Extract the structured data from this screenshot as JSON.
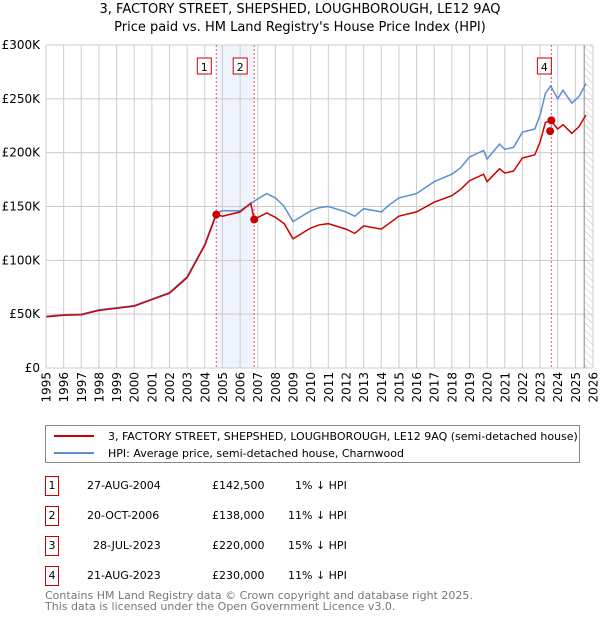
{
  "chart_data": {
    "type": "line",
    "title": "3, FACTORY STREET, SHEPSHED, LOUGHBOROUGH, LE12 9AQ",
    "subtitle": "Price paid vs. HM Land Registry's House Price Index (HPI)",
    "xlim": [
      1995,
      2026
    ],
    "ylim": [
      0,
      300000
    ],
    "y_ticks": [
      "£0",
      "£50K",
      "£100K",
      "£150K",
      "£200K",
      "£250K",
      "£300K"
    ],
    "x_ticks": [
      "1995",
      "1996",
      "1997",
      "1998",
      "1999",
      "2000",
      "2001",
      "2002",
      "2003",
      "2004",
      "2005",
      "2006",
      "2007",
      "2008",
      "2009",
      "2010",
      "2011",
      "2012",
      "2013",
      "2014",
      "2015",
      "2016",
      "2017",
      "2018",
      "2019",
      "2020",
      "2021",
      "2022",
      "2023",
      "2024",
      "2025",
      "2026"
    ],
    "grid": true,
    "shaded_period": [
      2004.65,
      2006.8
    ],
    "forecast_hatch_from": 2025.5,
    "series": [
      {
        "name": "HPI: Average price, semi-detached house, Charnwood",
        "color": "#5b8fd4",
        "x": [
          1995,
          1996,
          1997,
          1998,
          1999,
          2000,
          2001,
          2002,
          2003,
          2004,
          2004.65,
          2005,
          2006,
          2006.8,
          2007.5,
          2008,
          2008.5,
          2009,
          2010,
          2010.5,
          2011,
          2012,
          2012.5,
          2013,
          2014,
          2014.5,
          2015,
          2016,
          2017,
          2018,
          2018.5,
          2019,
          2019.8,
          2020,
          2020.7,
          2021,
          2021.5,
          2022,
          2022.7,
          2023,
          2023.3,
          2023.6,
          2024,
          2024.3,
          2024.8,
          2025.2,
          2025.6
        ],
        "y": [
          48000,
          49500,
          50000,
          54000,
          56000,
          58000,
          64000,
          70000,
          85000,
          115000,
          144000,
          146000,
          146000,
          155000,
          162000,
          158000,
          150000,
          136000,
          146000,
          149000,
          150000,
          145000,
          141000,
          148000,
          145000,
          152000,
          158000,
          162000,
          173000,
          180000,
          186000,
          196000,
          202000,
          194000,
          208000,
          203000,
          205000,
          219000,
          222000,
          235000,
          255000,
          262000,
          250000,
          258000,
          246000,
          252000,
          264000
        ]
      },
      {
        "name": "3, FACTORY STREET, SHEPSHED, LOUGHBOROUGH, LE12 9AQ (semi-detached house)",
        "color": "#cc0000",
        "x": [
          1995,
          1996,
          1997,
          1998,
          1999,
          2000,
          2001,
          2002,
          2003,
          2004,
          2004.65,
          2005,
          2006,
          2006.6,
          2006.8,
          2007.5,
          2008,
          2008.5,
          2009,
          2010,
          2010.5,
          2011,
          2012,
          2012.5,
          2013,
          2014,
          2014.5,
          2015,
          2016,
          2017,
          2018,
          2018.5,
          2019,
          2019.8,
          2020,
          2020.7,
          2021,
          2021.5,
          2022,
          2022.7,
          2023,
          2023.3,
          2023.6,
          2024,
          2024.3,
          2024.8,
          2025.2,
          2025.6
        ],
        "y": [
          47500,
          49000,
          49500,
          53500,
          55500,
          57500,
          63500,
          69500,
          84000,
          114000,
          142500,
          141000,
          145000,
          153000,
          138000,
          144000,
          140000,
          134000,
          120000,
          130000,
          133000,
          134000,
          129000,
          125000,
          132000,
          129000,
          135000,
          141000,
          145000,
          154000,
          160000,
          166000,
          174000,
          180000,
          173000,
          185000,
          181000,
          183000,
          195000,
          198000,
          210000,
          228000,
          230000,
          222000,
          226000,
          218000,
          224000,
          235000
        ]
      }
    ],
    "sales": [
      {
        "label": "1",
        "x": 2004.65,
        "y": 142500,
        "date": "27-AUG-2004",
        "price": "£142,500",
        "hpi": "1% ↓ HPI",
        "marker": true
      },
      {
        "label": "2",
        "x": 2006.8,
        "y": 138000,
        "date": "20-OCT-2006",
        "price": "£138,000",
        "hpi": "11% ↓ HPI",
        "marker": true
      },
      {
        "label": "3",
        "x": 2023.57,
        "y": 220000,
        "date": "28-JUL-2023",
        "price": "£220,000",
        "hpi": "15% ↓ HPI",
        "marker": false
      },
      {
        "label": "4",
        "x": 2023.64,
        "y": 230000,
        "date": "21-AUG-2023",
        "price": "£230,000",
        "hpi": "11% ↓ HPI",
        "marker": true
      }
    ]
  },
  "footer": {
    "line1": "Contains HM Land Registry data © Crown copyright and database right 2025.",
    "line2": "This data is licensed under the Open Government Licence v3.0."
  }
}
